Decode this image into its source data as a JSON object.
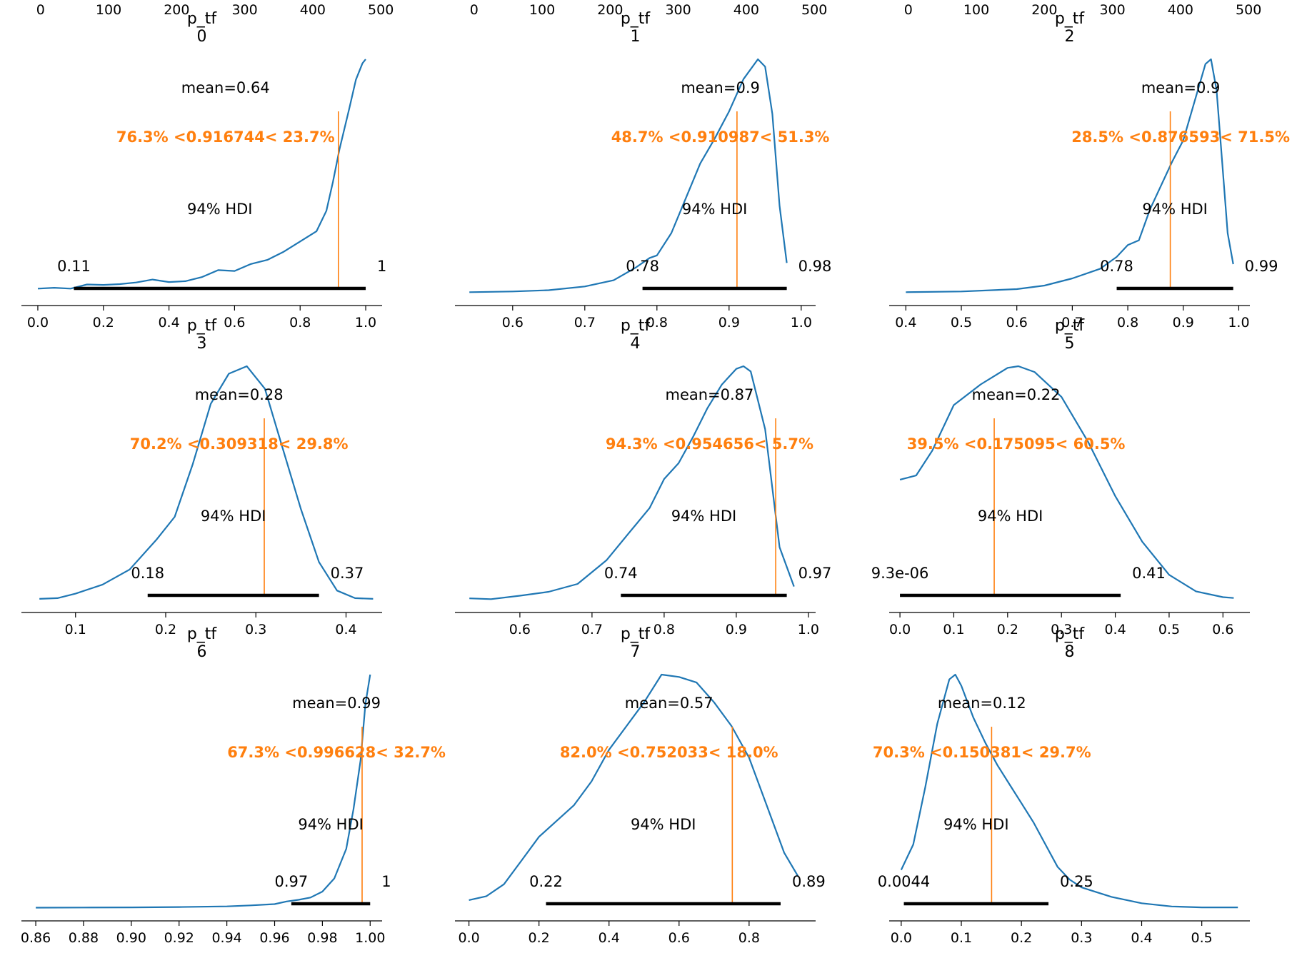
{
  "colors": {
    "kde": "#1f77b4",
    "ref": "#ff7f0e",
    "hdi": "#000000",
    "axis": "#000000",
    "text": "#000000"
  },
  "chart_data": [
    {
      "type": "line",
      "title_var": "p_tf",
      "title_index": "0",
      "xlim": [
        -0.05,
        1.05
      ],
      "xticks": [
        0.0,
        0.2,
        0.4,
        0.6,
        0.8,
        1.0
      ],
      "xtick_labels": [
        "0.0",
        "0.2",
        "0.4",
        "0.6",
        "0.8",
        "1.0"
      ],
      "top_xlim": [
        -5,
        525
      ],
      "top_xticks": [
        0,
        100,
        200,
        300,
        400,
        500
      ],
      "top_xtick_labels": [
        "0",
        "100",
        "200",
        "300",
        "400",
        "500"
      ],
      "kde_x": [
        0.0,
        0.05,
        0.1,
        0.15,
        0.2,
        0.25,
        0.3,
        0.35,
        0.4,
        0.45,
        0.5,
        0.55,
        0.6,
        0.65,
        0.7,
        0.75,
        0.8,
        0.85,
        0.88,
        0.9,
        0.92,
        0.95,
        0.97,
        0.99,
        1.0
      ],
      "kde_y": [
        0.1,
        0.12,
        0.1,
        0.2,
        0.19,
        0.21,
        0.25,
        0.32,
        0.26,
        0.28,
        0.38,
        0.55,
        0.53,
        0.7,
        0.8,
        1.0,
        1.25,
        1.5,
        2.0,
        2.7,
        3.5,
        4.5,
        5.2,
        5.6,
        5.7
      ],
      "kde_ymax": 5.7,
      "mean_label": "mean=0.64",
      "ref_value": 0.916744,
      "ref_label": "76.3% <0.916744< 23.7%",
      "hdi_label": "94% HDI",
      "hdi": [
        0.11,
        1.0
      ],
      "hdi_low_label": "0.11",
      "hdi_high_label": "1"
    },
    {
      "type": "line",
      "title_var": "p_tf",
      "title_index": "1",
      "xlim": [
        0.52,
        1.02
      ],
      "xticks": [
        0.6,
        0.7,
        0.8,
        0.9,
        1.0
      ],
      "xtick_labels": [
        "0.6",
        "0.7",
        "0.8",
        "0.9",
        "1.0"
      ],
      "top_xlim": [
        -5,
        525
      ],
      "top_xticks": [
        0,
        100,
        200,
        300,
        400,
        500
      ],
      "top_xtick_labels": [
        "0",
        "100",
        "200",
        "300",
        "400",
        "500"
      ],
      "kde_x": [
        0.54,
        0.6,
        0.65,
        0.7,
        0.74,
        0.77,
        0.79,
        0.8,
        0.82,
        0.84,
        0.86,
        0.88,
        0.9,
        0.92,
        0.94,
        0.95,
        0.96,
        0.97,
        0.98
      ],
      "kde_y": [
        0.02,
        0.05,
        0.1,
        0.25,
        0.5,
        1.0,
        1.4,
        1.5,
        2.4,
        3.8,
        5.2,
        6.2,
        7.3,
        8.6,
        9.4,
        9.1,
        7.2,
        3.5,
        1.2
      ],
      "kde_ymax": 9.4,
      "mean_label": "mean=0.9",
      "ref_value": 0.910987,
      "ref_label": "48.7% <0.910987< 51.3%",
      "hdi_label": "94% HDI",
      "hdi": [
        0.78,
        0.98
      ],
      "hdi_low_label": "0.78",
      "hdi_high_label": "0.98"
    },
    {
      "type": "line",
      "title_var": "p_tf",
      "title_index": "2",
      "xlim": [
        0.37,
        1.02
      ],
      "xticks": [
        0.4,
        0.5,
        0.6,
        0.7,
        0.8,
        0.9,
        1.0
      ],
      "xtick_labels": [
        "0.4",
        "0.5",
        "0.6",
        "0.7",
        "0.8",
        "0.9",
        "1.0"
      ],
      "top_xlim": [
        -5,
        525
      ],
      "top_xticks": [
        0,
        100,
        200,
        300,
        400,
        500
      ],
      "top_xtick_labels": [
        "0",
        "100",
        "200",
        "300",
        "400",
        "500"
      ],
      "kde_x": [
        0.4,
        0.5,
        0.6,
        0.65,
        0.7,
        0.75,
        0.78,
        0.8,
        0.82,
        0.84,
        0.86,
        0.88,
        0.9,
        0.92,
        0.94,
        0.95,
        0.96,
        0.97,
        0.98,
        0.99
      ],
      "kde_y": [
        0.02,
        0.05,
        0.15,
        0.3,
        0.6,
        1.0,
        1.5,
        2.0,
        2.2,
        3.5,
        4.5,
        5.5,
        6.4,
        8.0,
        9.6,
        9.8,
        8.5,
        5.5,
        2.5,
        1.2
      ],
      "kde_ymax": 9.8,
      "mean_label": "mean=0.9",
      "ref_value": 0.876593,
      "ref_label": "28.5% <0.876593< 71.5%",
      "hdi_label": "94% HDI",
      "hdi": [
        0.78,
        0.99
      ],
      "hdi_low_label": "0.78",
      "hdi_high_label": "0.99"
    },
    {
      "type": "line",
      "title_var": "p_tf",
      "title_index": "3",
      "xlim": [
        0.04,
        0.44
      ],
      "xticks": [
        0.1,
        0.2,
        0.3,
        0.4
      ],
      "xtick_labels": [
        "0.1",
        "0.2",
        "0.3",
        "0.4"
      ],
      "top_xlim": null,
      "top_xticks": [],
      "top_xtick_labels": [],
      "kde_x": [
        0.06,
        0.08,
        0.1,
        0.13,
        0.16,
        0.19,
        0.21,
        0.23,
        0.25,
        0.27,
        0.29,
        0.31,
        0.33,
        0.35,
        0.37,
        0.39,
        0.41,
        0.43
      ],
      "kde_y": [
        0.05,
        0.1,
        0.4,
        1.0,
        2.0,
        4.0,
        5.5,
        9.0,
        13.0,
        15.0,
        15.5,
        14.0,
        10.0,
        6.0,
        2.5,
        0.6,
        0.1,
        0.05
      ],
      "kde_ymax": 15.5,
      "mean_label": "mean=0.28",
      "ref_value": 0.309318,
      "ref_label": "70.2% <0.309318< 29.8%",
      "hdi_label": "94% HDI",
      "hdi": [
        0.18,
        0.37
      ],
      "hdi_low_label": "0.18",
      "hdi_high_label": "0.37"
    },
    {
      "type": "line",
      "title_var": "p_tf",
      "title_index": "4",
      "xlim": [
        0.51,
        1.01
      ],
      "xticks": [
        0.6,
        0.7,
        0.8,
        0.9,
        1.0
      ],
      "xtick_labels": [
        "0.6",
        "0.7",
        "0.8",
        "0.9",
        "1.0"
      ],
      "top_xlim": null,
      "top_xticks": [],
      "top_xtick_labels": [],
      "kde_x": [
        0.53,
        0.56,
        0.6,
        0.64,
        0.68,
        0.72,
        0.75,
        0.78,
        0.8,
        0.82,
        0.84,
        0.86,
        0.88,
        0.9,
        0.91,
        0.92,
        0.94,
        0.96,
        0.98
      ],
      "kde_y": [
        0.05,
        0.02,
        0.15,
        0.3,
        0.6,
        1.5,
        2.5,
        3.5,
        4.6,
        5.2,
        6.2,
        7.3,
        8.2,
        8.8,
        8.9,
        8.7,
        6.5,
        2.0,
        0.5
      ],
      "kde_ymax": 8.9,
      "mean_label": "mean=0.87",
      "ref_value": 0.954656,
      "ref_label": "94.3% <0.954656< 5.7%",
      "hdi_label": "94% HDI",
      "hdi": [
        0.74,
        0.97
      ],
      "hdi_low_label": "0.74",
      "hdi_high_label": "0.97"
    },
    {
      "type": "line",
      "title_var": "p_tf",
      "title_index": "5",
      "xlim": [
        -0.02,
        0.65
      ],
      "xticks": [
        0.0,
        0.1,
        0.2,
        0.3,
        0.4,
        0.5,
        0.6
      ],
      "xtick_labels": [
        "0.0",
        "0.1",
        "0.2",
        "0.3",
        "0.4",
        "0.5",
        "0.6"
      ],
      "top_xlim": null,
      "top_xticks": [],
      "top_xtick_labels": [],
      "kde_x": [
        0.0,
        0.03,
        0.06,
        0.1,
        0.15,
        0.2,
        0.22,
        0.25,
        0.3,
        0.35,
        0.4,
        0.45,
        0.5,
        0.55,
        0.6,
        0.62
      ],
      "kde_y": [
        1.45,
        1.5,
        1.8,
        2.35,
        2.6,
        2.8,
        2.82,
        2.75,
        2.45,
        1.9,
        1.25,
        0.7,
        0.3,
        0.1,
        0.03,
        0.02
      ],
      "kde_ymax": 2.82,
      "mean_label": "mean=0.22",
      "ref_value": 0.175095,
      "ref_label": "39.5% <0.175095< 60.5%",
      "hdi_label": "94% HDI",
      "hdi": [
        0.0,
        0.41
      ],
      "hdi_low_label": "9.3e-06",
      "hdi_high_label": "0.41"
    },
    {
      "type": "line",
      "title_var": "p_tf",
      "title_index": "6",
      "xlim": [
        0.854,
        1.005
      ],
      "xticks": [
        0.86,
        0.88,
        0.9,
        0.92,
        0.94,
        0.96,
        0.98,
        1.0
      ],
      "xtick_labels": [
        "0.86",
        "0.88",
        "0.90",
        "0.92",
        "0.94",
        "0.96",
        "0.98",
        "1.00"
      ],
      "top_xlim": null,
      "top_xticks": [],
      "top_xtick_labels": [],
      "kde_x": [
        0.86,
        0.88,
        0.9,
        0.92,
        0.94,
        0.95,
        0.96,
        0.965,
        0.97,
        0.975,
        0.98,
        0.985,
        0.99,
        0.993,
        0.996,
        0.998,
        1.0
      ],
      "kde_y": [
        0.1,
        0.15,
        0.2,
        0.3,
        0.5,
        0.8,
        1.2,
        2.0,
        2.5,
        3.2,
        5.0,
        9.0,
        18.0,
        30.0,
        45.0,
        62.0,
        71.0
      ],
      "kde_ymax": 71.0,
      "mean_label": "mean=0.99",
      "ref_value": 0.996628,
      "ref_label": "67.3% <0.996628< 32.7%",
      "hdi_label": "94% HDI",
      "hdi": [
        0.967,
        1.0
      ],
      "hdi_low_label": "0.97",
      "hdi_high_label": "1"
    },
    {
      "type": "line",
      "title_var": "p_tf",
      "title_index": "7",
      "xlim": [
        -0.04,
        0.99
      ],
      "xticks": [
        0.0,
        0.2,
        0.4,
        0.6,
        0.8
      ],
      "xtick_labels": [
        "0.0",
        "0.2",
        "0.4",
        "0.6",
        "0.8"
      ],
      "top_xlim": null,
      "top_xticks": [],
      "top_xtick_labels": [],
      "kde_x": [
        0.0,
        0.05,
        0.1,
        0.15,
        0.2,
        0.25,
        0.3,
        0.35,
        0.4,
        0.45,
        0.5,
        0.55,
        0.6,
        0.65,
        0.7,
        0.75,
        0.8,
        0.85,
        0.9,
        0.94
      ],
      "kde_y": [
        0.1,
        0.15,
        0.3,
        0.6,
        0.9,
        1.1,
        1.3,
        1.6,
        2.0,
        2.3,
        2.6,
        2.95,
        2.92,
        2.85,
        2.6,
        2.3,
        1.9,
        1.3,
        0.7,
        0.4
      ],
      "kde_ymax": 2.95,
      "mean_label": "mean=0.57",
      "ref_value": 0.752033,
      "ref_label": "82.0% <0.752033< 18.0%",
      "hdi_label": "94% HDI",
      "hdi": [
        0.22,
        0.89
      ],
      "hdi_low_label": "0.22",
      "hdi_high_label": "0.89"
    },
    {
      "type": "line",
      "title_var": "p_tf",
      "title_index": "8",
      "xlim": [
        -0.02,
        0.58
      ],
      "xticks": [
        0.0,
        0.1,
        0.2,
        0.3,
        0.4,
        0.5
      ],
      "xtick_labels": [
        "0.0",
        "0.1",
        "0.2",
        "0.3",
        "0.4",
        "0.5"
      ],
      "top_xlim": null,
      "top_xticks": [],
      "top_xtick_labels": [],
      "kde_x": [
        0.0,
        0.02,
        0.04,
        0.06,
        0.08,
        0.09,
        0.1,
        0.12,
        0.14,
        0.16,
        0.18,
        0.2,
        0.22,
        0.24,
        0.26,
        0.28,
        0.3,
        0.35,
        0.4,
        0.45,
        0.5,
        0.56
      ],
      "kde_y": [
        1.2,
        2.0,
        3.8,
        5.8,
        7.2,
        7.35,
        7.0,
        6.0,
        5.2,
        4.5,
        3.9,
        3.3,
        2.7,
        2.0,
        1.3,
        0.9,
        0.65,
        0.35,
        0.15,
        0.05,
        0.02,
        0.02
      ],
      "kde_ymax": 7.35,
      "mean_label": "mean=0.12",
      "ref_value": 0.150381,
      "ref_label": "70.3% <0.150381< 29.7%",
      "hdi_label": "94% HDI",
      "hdi": [
        0.0044,
        0.245
      ],
      "hdi_low_label": "0.0044",
      "hdi_high_label": "0.25"
    }
  ]
}
